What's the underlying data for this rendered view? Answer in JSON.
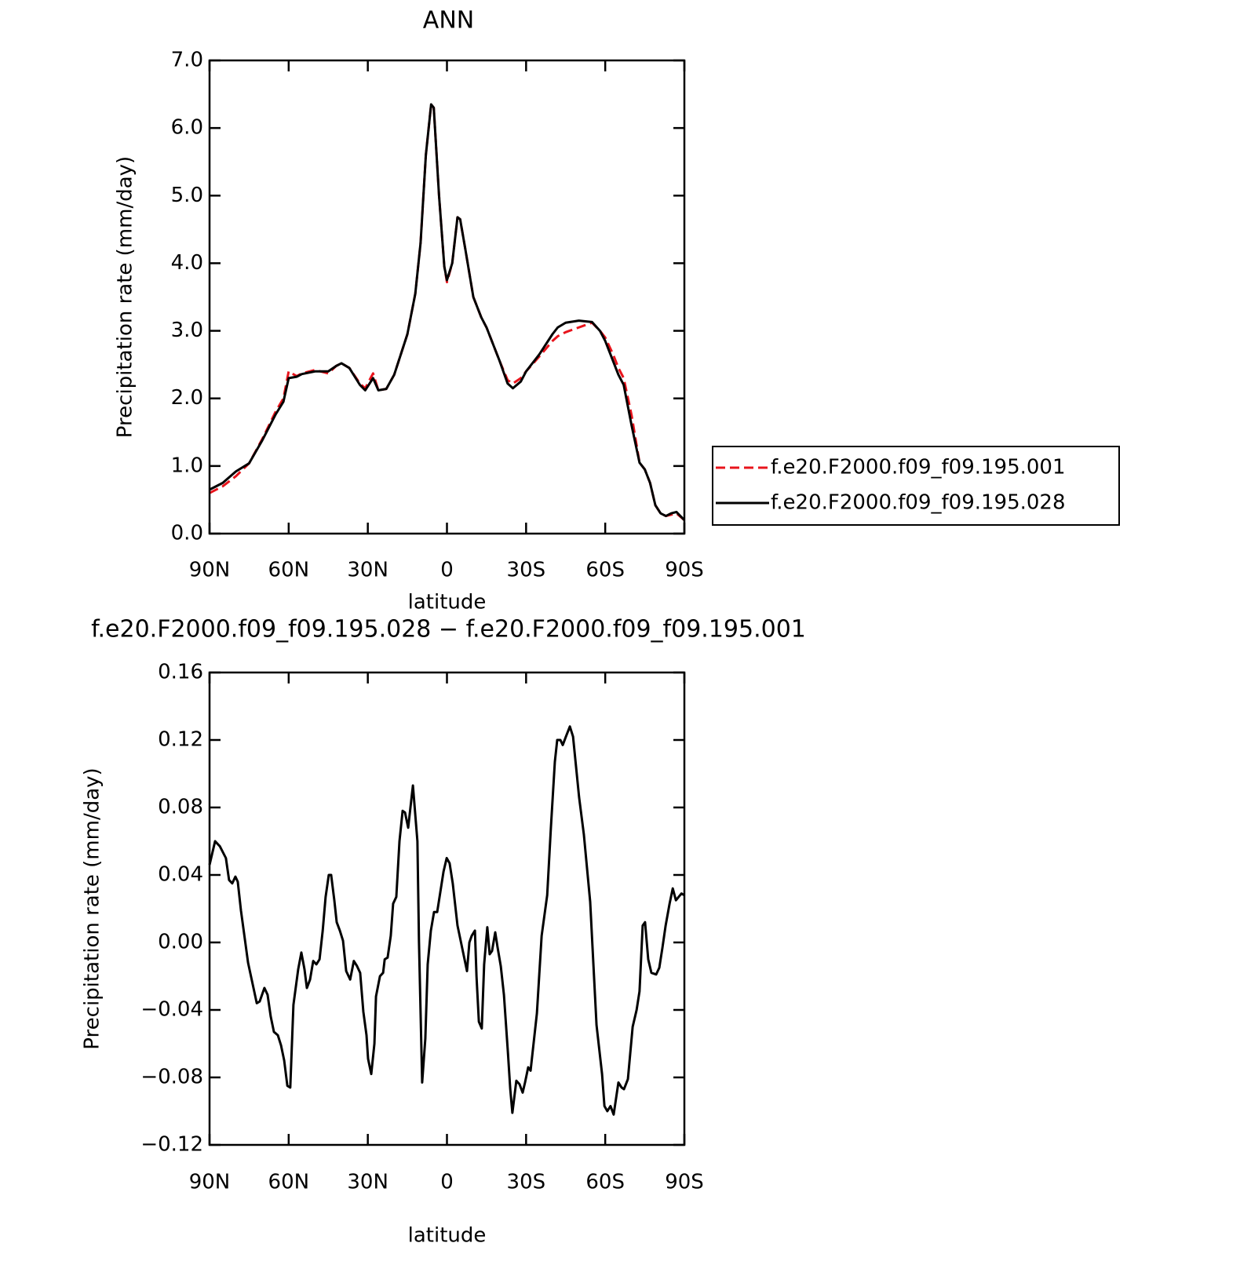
{
  "chart_data": [
    {
      "type": "line",
      "title": "ANN",
      "xlabel": "latitude",
      "ylabel": "Precipitation rate (mm/day)",
      "xlim": [
        90,
        -90
      ],
      "ylim": [
        0,
        7
      ],
      "xticks": [
        {
          "value": 90,
          "label": "90N"
        },
        {
          "value": 60,
          "label": "60N"
        },
        {
          "value": 30,
          "label": "30N"
        },
        0,
        {
          "value": -30,
          "label": "30S"
        },
        {
          "value": -60,
          "label": "60S"
        },
        {
          "value": -90,
          "label": "90S"
        }
      ],
      "yticks": [
        {
          "value": 0,
          "label": "0.0"
        },
        {
          "value": 1,
          "label": "1.0"
        },
        {
          "value": 2,
          "label": "2.0"
        },
        {
          "value": 3,
          "label": "3.0"
        },
        {
          "value": 4,
          "label": "4.0"
        },
        {
          "value": 5,
          "label": "5.0"
        },
        {
          "value": 6,
          "label": "6.0"
        },
        {
          "value": 7,
          "label": "7.0"
        }
      ],
      "legend": "right",
      "x": [
        90,
        85,
        80,
        75,
        70,
        65,
        62,
        60,
        57,
        55,
        50,
        45,
        42,
        40,
        37,
        33,
        31,
        28,
        26,
        23,
        20,
        15,
        12,
        10,
        8,
        6,
        5,
        3,
        1,
        0,
        -2,
        -4,
        -5,
        -7,
        -10,
        -13,
        -15,
        -20,
        -23,
        -25,
        -28,
        -30,
        -35,
        -40,
        -42,
        -45,
        -50,
        -55,
        -58,
        -60,
        -63,
        -65,
        -67,
        -70,
        -73,
        -75,
        -77,
        -79,
        -81,
        -83,
        -85,
        -87,
        -90
      ],
      "series": [
        {
          "name": "f.e20.F2000.f09_f09.195.001",
          "color": "#e8141c",
          "style": "dashed",
          "values": [
            0.6,
            0.7,
            0.85,
            1.04,
            1.4,
            1.8,
            2.0,
            2.4,
            2.33,
            2.37,
            2.42,
            2.37,
            2.48,
            2.52,
            2.45,
            2.22,
            2.15,
            2.37,
            2.12,
            2.14,
            2.35,
            2.95,
            3.55,
            4.3,
            5.6,
            6.35,
            6.3,
            5.0,
            3.95,
            3.72,
            4.0,
            4.68,
            4.65,
            4.2,
            3.5,
            3.2,
            3.05,
            2.55,
            2.27,
            2.22,
            2.3,
            2.4,
            2.62,
            2.85,
            2.92,
            2.98,
            3.05,
            3.12,
            3.0,
            2.9,
            2.65,
            2.45,
            2.3,
            1.75,
            1.05,
            0.95,
            0.75,
            0.42,
            0.3,
            0.26,
            0.28,
            0.3,
            0.2
          ]
        },
        {
          "name": "f.e20.F2000.f09_f09.195.028",
          "color": "#000000",
          "style": "solid",
          "values": [
            0.65,
            0.75,
            0.92,
            1.04,
            1.38,
            1.76,
            1.95,
            2.3,
            2.32,
            2.36,
            2.4,
            2.4,
            2.48,
            2.52,
            2.45,
            2.2,
            2.12,
            2.3,
            2.12,
            2.14,
            2.35,
            2.95,
            3.55,
            4.3,
            5.6,
            6.35,
            6.3,
            5.0,
            3.95,
            3.75,
            4.0,
            4.68,
            4.65,
            4.2,
            3.5,
            3.2,
            3.05,
            2.55,
            2.22,
            2.15,
            2.25,
            2.4,
            2.65,
            2.95,
            3.05,
            3.12,
            3.15,
            3.13,
            3.0,
            2.85,
            2.55,
            2.35,
            2.2,
            1.6,
            1.05,
            0.95,
            0.75,
            0.42,
            0.3,
            0.26,
            0.3,
            0.32,
            0.2
          ]
        }
      ]
    },
    {
      "type": "line",
      "title": "f.e20.F2000.f09_f09.195.028 − f.e20.F2000.f09_f09.195.001",
      "xlabel": "latitude",
      "ylabel": "Precipitation rate (mm/day)",
      "xlim": [
        90,
        -90
      ],
      "ylim": [
        -0.12,
        0.16
      ],
      "xticks": [
        {
          "value": 90,
          "label": "90N"
        },
        {
          "value": 60,
          "label": "60N"
        },
        {
          "value": 30,
          "label": "30N"
        },
        0,
        {
          "value": -30,
          "label": "30S"
        },
        {
          "value": -60,
          "label": "60S"
        },
        {
          "value": -90,
          "label": "90S"
        }
      ],
      "yticks": [
        {
          "value": -0.12,
          "label": "−0.12"
        },
        {
          "value": -0.08,
          "label": "−0.08"
        },
        {
          "value": -0.04,
          "label": "−0.04"
        },
        {
          "value": 0,
          "label": "0.00"
        },
        0.04,
        0.08,
        0.12,
        0.16
      ],
      "x": [
        90,
        87.9,
        86.1,
        83.8,
        82.6,
        81.4,
        80.2,
        79.3,
        78.1,
        75.4,
        72.1,
        71.0,
        69.2,
        68.0,
        66.8,
        65.6,
        64.1,
        62.9,
        61.7,
        60.5,
        59.4,
        58.2,
        56.4,
        55.2,
        54.0,
        53.1,
        51.9,
        50.7,
        49.5,
        48.3,
        47.1,
        46.0,
        44.8,
        43.9,
        42.7,
        41.8,
        40.6,
        39.4,
        38.2,
        36.7,
        35.3,
        34.1,
        32.9,
        31.7,
        30.5,
        29.9,
        28.7,
        27.5,
        26.9,
        25.4,
        24.2,
        23.6,
        22.5,
        21.3,
        20.4,
        19.2,
        18.0,
        16.8,
        15.9,
        14.7,
        12.9,
        11.2,
        10.6,
        9.4,
        8.2,
        7.3,
        6.1,
        4.9,
        3.7,
        2.5,
        1.3,
        0.1,
        -1.0,
        -2.2,
        -4.0,
        -6.4,
        -7.6,
        -8.5,
        -9.4,
        -10.6,
        -11.2,
        -12.1,
        -13.2,
        -14.1,
        -15.3,
        -16.2,
        -17.1,
        -18.3,
        -19.2,
        -20.4,
        -21.6,
        -23.1,
        -24.0,
        -24.8,
        -26.3,
        -27.5,
        -28.7,
        -29.6,
        -30.8,
        -31.7,
        -34.1,
        -35.9,
        -38.0,
        -39.4,
        -40.9,
        -41.8,
        -43.0,
        -43.9,
        -45.1,
        -46.6,
        -47.8,
        -50.1,
        -51.9,
        -54.3,
        -56.7,
        -58.8,
        -59.7,
        -60.8,
        -62.0,
        -63.2,
        -65.0,
        -66.2,
        -67.1,
        -68.6,
        -70.4,
        -71.9,
        -73.0,
        -74.2,
        -75.1,
        -76.3,
        -77.5,
        -79.3,
        -80.5,
        -81.7,
        -82.9,
        -84.4,
        -85.6,
        -86.8,
        -88.9,
        -90
      ],
      "series": [
        {
          "color": "#000000",
          "style": "solid",
          "values": [
            0.046,
            0.06,
            0.057,
            0.05,
            0.037,
            0.035,
            0.039,
            0.036,
            0.019,
            -0.012,
            -0.036,
            -0.035,
            -0.027,
            -0.031,
            -0.044,
            -0.053,
            -0.055,
            -0.061,
            -0.07,
            -0.085,
            -0.086,
            -0.037,
            -0.016,
            -0.006,
            -0.016,
            -0.027,
            -0.022,
            -0.011,
            -0.013,
            -0.01,
            0.007,
            0.027,
            0.04,
            0.04,
            0.025,
            0.012,
            0.007,
            0.001,
            -0.017,
            -0.022,
            -0.011,
            -0.014,
            -0.018,
            -0.041,
            -0.055,
            -0.069,
            -0.078,
            -0.06,
            -0.032,
            -0.02,
            -0.018,
            -0.01,
            -0.009,
            0.004,
            0.023,
            0.027,
            0.06,
            0.078,
            0.077,
            0.068,
            0.093,
            0.06,
            0.0,
            -0.083,
            -0.057,
            -0.013,
            0.007,
            0.018,
            0.018,
            0.03,
            0.042,
            0.05,
            0.047,
            0.035,
            0.01,
            -0.008,
            -0.017,
            0.0,
            0.004,
            0.007,
            -0.02,
            -0.047,
            -0.051,
            -0.013,
            0.009,
            -0.007,
            -0.005,
            0.006,
            -0.003,
            -0.014,
            -0.031,
            -0.065,
            -0.087,
            -0.101,
            -0.082,
            -0.084,
            -0.089,
            -0.083,
            -0.074,
            -0.076,
            -0.042,
            0.004,
            0.028,
            0.068,
            0.107,
            0.12,
            0.12,
            0.117,
            0.122,
            0.128,
            0.122,
            0.086,
            0.064,
            0.024,
            -0.049,
            -0.078,
            -0.097,
            -0.1,
            -0.097,
            -0.102,
            -0.083,
            -0.086,
            -0.087,
            -0.081,
            -0.05,
            -0.04,
            -0.029,
            0.01,
            0.012,
            -0.01,
            -0.018,
            -0.019,
            -0.015,
            -0.003,
            0.01,
            0.023,
            0.032,
            0.025,
            0.029,
            0.028
          ]
        }
      ]
    }
  ]
}
